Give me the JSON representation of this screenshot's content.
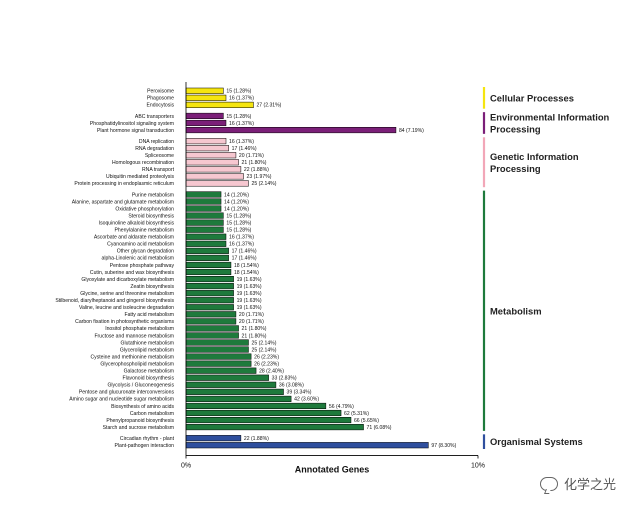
{
  "chart_data": {
    "type": "bar",
    "orientation": "horizontal",
    "title": "",
    "xlabel": "Annotated Genes",
    "xlim": [
      0,
      10
    ],
    "x_ticks": [
      "0%",
      "10%"
    ],
    "groups": [
      {
        "name": "Cellular Processes",
        "color": "#f5e50f",
        "bracket_color": "#f5e50f",
        "items": [
          {
            "label": "Peroxisome",
            "value": 15,
            "percent": "1.28%"
          },
          {
            "label": "Phagosome",
            "value": 16,
            "percent": "1.37%"
          },
          {
            "label": "Endocytosis",
            "value": 27,
            "percent": "2.31%"
          }
        ]
      },
      {
        "name": "Environmental Information Processing",
        "color": "#7b1f78",
        "bracket_color": "#7b1f78",
        "items": [
          {
            "label": "ABC transporters",
            "value": 15,
            "percent": "1.28%"
          },
          {
            "label": "Phosphatidylinositol signaling system",
            "value": 16,
            "percent": "1.37%"
          },
          {
            "label": "Plant hormone signal transduction",
            "value": 84,
            "percent": "7.19%"
          }
        ]
      },
      {
        "name": "Genetic Information Processing",
        "color": "#f6c7d0",
        "bracket_color": "#f2a7b8",
        "items": [
          {
            "label": "DNA replication",
            "value": 16,
            "percent": "1.37%"
          },
          {
            "label": "RNA degradation",
            "value": 17,
            "percent": "1.46%"
          },
          {
            "label": "Spliceosome",
            "value": 20,
            "percent": "1.71%"
          },
          {
            "label": "Homologous recombination",
            "value": 21,
            "percent": "1.80%"
          },
          {
            "label": "RNA transport",
            "value": 22,
            "percent": "1.88%"
          },
          {
            "label": "Ubiquitin mediated proteolysis",
            "value": 23,
            "percent": "1.97%"
          },
          {
            "label": "Protein processing in endoplasmic reticulum",
            "value": 25,
            "percent": "2.14%"
          }
        ]
      },
      {
        "name": "Metabolism",
        "color": "#1e7a3c",
        "bracket_color": "#1e7a3c",
        "items": [
          {
            "label": "Purine metabolism",
            "value": 14,
            "percent": "1.20%"
          },
          {
            "label": "Alanine, aspartate and glutamate metabolism",
            "value": 14,
            "percent": "1.20%"
          },
          {
            "label": "Oxidative phosphorylation",
            "value": 14,
            "percent": "1.20%"
          },
          {
            "label": "Steroid biosynthesis",
            "value": 15,
            "percent": "1.28%"
          },
          {
            "label": "Isoquinoline alkaloid biosynthesis",
            "value": 15,
            "percent": "1.28%"
          },
          {
            "label": "Phenylalanine metabolism",
            "value": 15,
            "percent": "1.28%"
          },
          {
            "label": "Ascorbate and aldarate metabolism",
            "value": 16,
            "percent": "1.37%"
          },
          {
            "label": "Cyanoamino acid metabolism",
            "value": 16,
            "percent": "1.37%"
          },
          {
            "label": "Other glycan degradation",
            "value": 17,
            "percent": "1.46%"
          },
          {
            "label": "alpha-Linolenic acid metabolism",
            "value": 17,
            "percent": "1.46%"
          },
          {
            "label": "Pentose phosphate pathway",
            "value": 18,
            "percent": "1.54%"
          },
          {
            "label": "Cutin, suberine and wax biosynthesis",
            "value": 18,
            "percent": "1.54%"
          },
          {
            "label": "Glyoxylate and dicarboxylate metabolism",
            "value": 19,
            "percent": "1.63%"
          },
          {
            "label": "Zeatin biosynthesis",
            "value": 19,
            "percent": "1.63%"
          },
          {
            "label": "Glycine, serine and threonine metabolism",
            "value": 19,
            "percent": "1.63%"
          },
          {
            "label": "Stilbenoid, diarylheptanoid and gingerol biosynthesis",
            "value": 19,
            "percent": "1.63%"
          },
          {
            "label": "Valine, leucine and isoleucine degradation",
            "value": 19,
            "percent": "1.63%"
          },
          {
            "label": "Fatty acid metabolism",
            "value": 20,
            "percent": "1.71%"
          },
          {
            "label": "Carbon fixation in photosynthetic organisms",
            "value": 20,
            "percent": "1.71%"
          },
          {
            "label": "Inositol phosphate metabolism",
            "value": 21,
            "percent": "1.80%"
          },
          {
            "label": "Fructose and mannose metabolism",
            "value": 21,
            "percent": "1.80%"
          },
          {
            "label": "Glutathione metabolism",
            "value": 25,
            "percent": "2.14%"
          },
          {
            "label": "Glycerolipid metabolism",
            "value": 25,
            "percent": "2.14%"
          },
          {
            "label": "Cysteine and methionine metabolism",
            "value": 26,
            "percent": "2.23%"
          },
          {
            "label": "Glycerophospholipid metabolism",
            "value": 26,
            "percent": "2.23%"
          },
          {
            "label": "Galactose metabolism",
            "value": 28,
            "percent": "2.40%"
          },
          {
            "label": "Flavonoid biosynthesis",
            "value": 33,
            "percent": "2.83%"
          },
          {
            "label": "Glycolysis / Gluconeogenesis",
            "value": 36,
            "percent": "3.08%"
          },
          {
            "label": "Pentose and glucuronate interconversions",
            "value": 39,
            "percent": "3.34%"
          },
          {
            "label": "Amino sugar and nucleotide sugar metabolism",
            "value": 42,
            "percent": "3.60%"
          },
          {
            "label": "Biosynthesis of amino acids",
            "value": 56,
            "percent": "4.79%"
          },
          {
            "label": "Carbon metabolism",
            "value": 62,
            "percent": "5.31%"
          },
          {
            "label": "Phenylpropanoid biosynthesis",
            "value": 66,
            "percent": "5.65%"
          },
          {
            "label": "Starch and sucrose metabolism",
            "value": 71,
            "percent": "6.08%"
          }
        ]
      },
      {
        "name": "Organismal Systems",
        "color": "#2f4f9e",
        "bracket_color": "#2f4f9e",
        "items": [
          {
            "label": "Circadian rhythm - plant",
            "value": 22,
            "percent": "1.88%"
          },
          {
            "label": "Plant-pathogen interaction",
            "value": 97,
            "percent": "8.30%"
          }
        ]
      }
    ],
    "grid": false,
    "legend": "none"
  },
  "watermark": {
    "text": "化学之光",
    "icon": "wechat-icon"
  }
}
